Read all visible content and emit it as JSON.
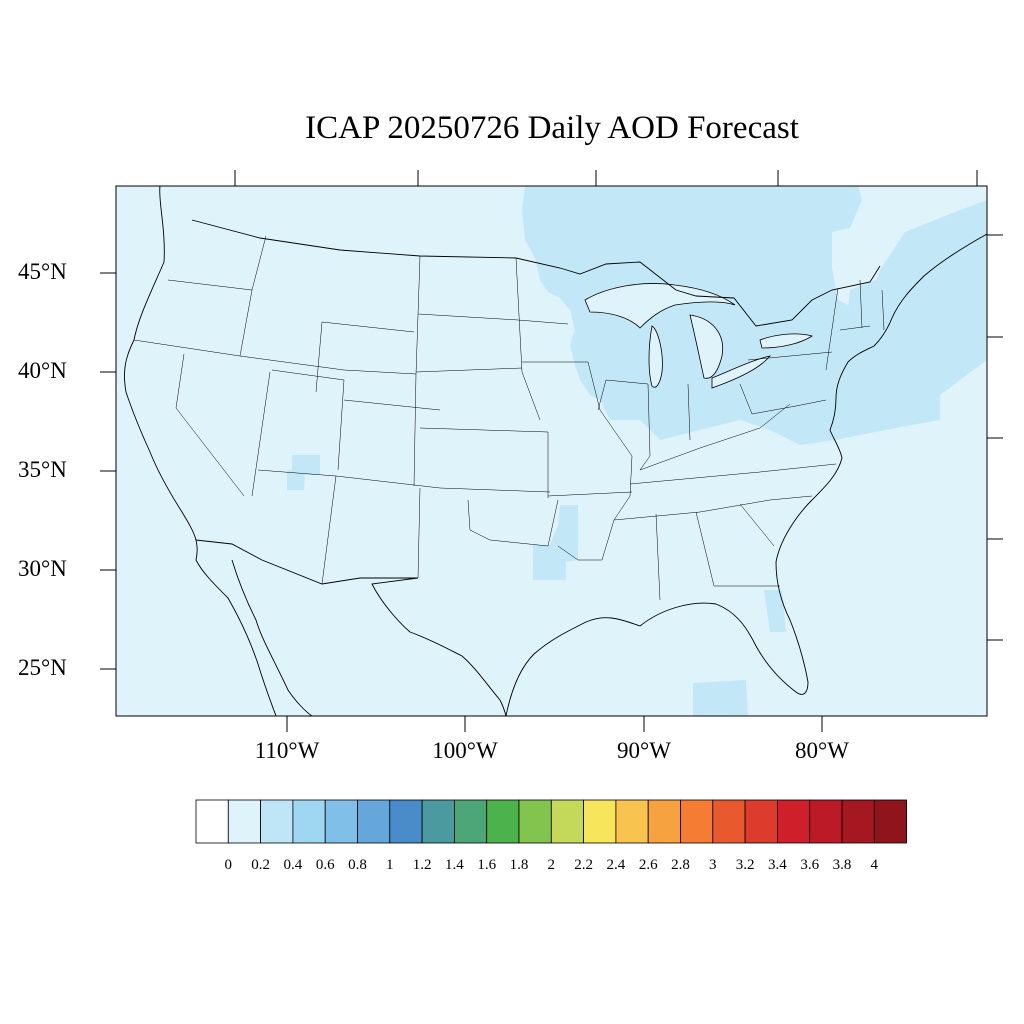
{
  "title": "ICAP 20250726 Daily AOD Forecast",
  "map": {
    "lat_labels": [
      "45°N",
      "40°N",
      "35°N",
      "30°N",
      "25°N"
    ],
    "lon_labels": [
      "110°W",
      "100°W",
      "90°W",
      "80°W"
    ],
    "extent": {
      "lon": [
        -119,
        -70.5
      ],
      "lat": [
        22.5,
        49.5
      ]
    },
    "ocean_land_fill": "#dff3fb",
    "elevated_aod_fill": "#c2e8f8",
    "accent_fill": "#b8e2f6"
  },
  "colorbar": {
    "tick_labels": [
      "0",
      "0.2",
      "0.4",
      "0.6",
      "0.8",
      "1",
      "1.2",
      "1.4",
      "1.6",
      "1.8",
      "2",
      "2.2",
      "2.4",
      "2.6",
      "2.8",
      "3",
      "3.2",
      "3.4",
      "3.6",
      "3.8",
      "4"
    ],
    "colors": [
      "#ffffff",
      "#dff3fb",
      "#bfe6f7",
      "#9fd7f3",
      "#80bfe7",
      "#66a7db",
      "#4a8bc9",
      "#4a9aa0",
      "#4ca678",
      "#4bb24c",
      "#83c44e",
      "#c4d95a",
      "#f7e55c",
      "#f8c34e",
      "#f7a240",
      "#f47d33",
      "#e85a2e",
      "#dd3b2b",
      "#cf1f2a",
      "#bb1a26",
      "#a61821",
      "#8f141c"
    ]
  }
}
